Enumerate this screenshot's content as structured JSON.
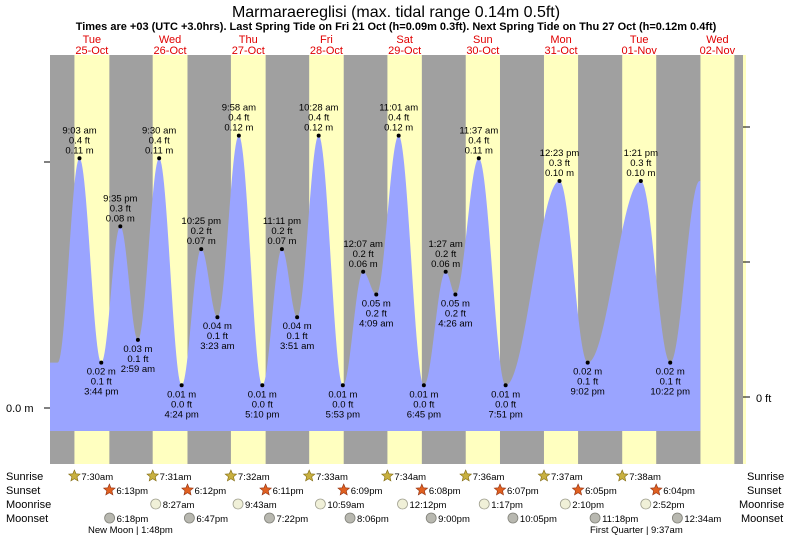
{
  "chart_data": {
    "type": "area",
    "title": "Marmaraereglisi (max. tidal range 0.14m 0.5ft)",
    "subtitle": "Times are +03 (UTC +3.0hrs). Last Spring Tide on Fri 21 Oct (h=0.09m 0.3ft). Next Spring Tide on Thu 27 Oct (h=0.12m 0.4ft)",
    "ylabel_left": "0.0 m",
    "ylabel_right": "0 ft",
    "ylim_m": [
      -0.03,
      0.155
    ],
    "days": [
      {
        "dow": "Tue",
        "date": "25-Oct"
      },
      {
        "dow": "Wed",
        "date": "26-Oct"
      },
      {
        "dow": "Thu",
        "date": "27-Oct"
      },
      {
        "dow": "Fri",
        "date": "28-Oct"
      },
      {
        "dow": "Sat",
        "date": "29-Oct"
      },
      {
        "dow": "Sun",
        "date": "30-Oct"
      },
      {
        "dow": "Mon",
        "date": "31-Oct"
      },
      {
        "dow": "Tue",
        "date": "01-Nov"
      },
      {
        "dow": "Wed",
        "date": "02-Nov"
      }
    ],
    "daylight_hours": [
      {
        "sunrise": 7.5,
        "sunset": 18.217
      },
      {
        "sunrise": 7.517,
        "sunset": 18.2
      },
      {
        "sunrise": 7.533,
        "sunset": 18.183
      },
      {
        "sunrise": 7.55,
        "sunset": 18.15
      },
      {
        "sunrise": 7.567,
        "sunset": 18.133
      },
      {
        "sunrise": 7.6,
        "sunset": 18.117
      },
      {
        "sunrise": 7.617,
        "sunset": 18.083
      },
      {
        "sunrise": 7.633,
        "sunset": 18.067
      },
      {
        "sunrise": 7.65,
        "sunset": 18.05
      }
    ],
    "extremes": [
      {
        "t": 9.05,
        "h": 0.11,
        "type": "high",
        "time": "9:03 am",
        "ft": "0.4 ft",
        "m": "0.11 m"
      },
      {
        "t": 15.733,
        "h": 0.02,
        "type": "low",
        "time": "3:44 pm",
        "ft": "0.1 ft",
        "m": "0.02 m"
      },
      {
        "t": 21.583,
        "h": 0.08,
        "type": "high",
        "time": "9:35 pm",
        "ft": "0.3 ft",
        "m": "0.08 m"
      },
      {
        "t": 26.983,
        "h": 0.03,
        "type": "low",
        "time": "2:59 am",
        "ft": "0.1 ft",
        "m": "0.03 m"
      },
      {
        "t": 33.5,
        "h": 0.11,
        "type": "high",
        "time": "9:30 am",
        "ft": "0.4 ft",
        "m": "0.11 m"
      },
      {
        "t": 40.4,
        "h": 0.01,
        "type": "low",
        "time": "4:24 pm",
        "ft": "0.0 ft",
        "m": "0.01 m"
      },
      {
        "t": 46.417,
        "h": 0.07,
        "type": "high",
        "time": "10:25 pm",
        "ft": "0.2 ft",
        "m": "0.07 m"
      },
      {
        "t": 51.383,
        "h": 0.04,
        "type": "low",
        "time": "3:23 am",
        "ft": "0.1 ft",
        "m": "0.04 m"
      },
      {
        "t": 57.967,
        "h": 0.12,
        "type": "high",
        "time": "9:58 am",
        "ft": "0.4 ft",
        "m": "0.12 m"
      },
      {
        "t": 65.167,
        "h": 0.01,
        "type": "low",
        "time": "5:10 pm",
        "ft": "0.0 ft",
        "m": "0.01 m"
      },
      {
        "t": 71.183,
        "h": 0.07,
        "type": "high",
        "time": "11:11 pm",
        "ft": "0.2 ft",
        "m": "0.07 m"
      },
      {
        "t": 75.85,
        "h": 0.04,
        "type": "low",
        "time": "3:51 am",
        "ft": "0.1 ft",
        "m": "0.04 m"
      },
      {
        "t": 82.467,
        "h": 0.12,
        "type": "high",
        "time": "10:28 am",
        "ft": "0.4 ft",
        "m": "0.12 m"
      },
      {
        "t": 89.883,
        "h": 0.01,
        "type": "low",
        "time": "5:53 pm",
        "ft": "0.0 ft",
        "m": "0.01 m"
      },
      {
        "t": 96.117,
        "h": 0.06,
        "type": "high",
        "time": "12:07 am",
        "ft": "0.2 ft",
        "m": "0.06 m"
      },
      {
        "t": 100.15,
        "h": 0.05,
        "type": "low",
        "time": "4:09 am",
        "ft": "0.2 ft",
        "m": "0.05 m"
      },
      {
        "t": 107.017,
        "h": 0.12,
        "type": "high",
        "time": "11:01 am",
        "ft": "0.4 ft",
        "m": "0.12 m"
      },
      {
        "t": 114.75,
        "h": 0.01,
        "type": "low",
        "time": "6:45 pm",
        "ft": "0.0 ft",
        "m": "0.01 m"
      },
      {
        "t": 121.45,
        "h": 0.06,
        "type": "high",
        "time": "1:27 am",
        "ft": "0.2 ft",
        "m": "0.06 m"
      },
      {
        "t": 124.433,
        "h": 0.05,
        "type": "low",
        "time": "4:26 am",
        "ft": "0.2 ft",
        "m": "0.05 m"
      },
      {
        "t": 131.617,
        "h": 0.11,
        "type": "high",
        "time": "11:37 am",
        "ft": "0.4 ft",
        "m": "0.11 m"
      },
      {
        "t": 139.85,
        "h": 0.01,
        "type": "low",
        "time": "7:51 pm",
        "ft": "0.0 ft",
        "m": "0.01 m"
      },
      {
        "t": 156.383,
        "h": 0.1,
        "type": "high",
        "time": "12:23 pm",
        "ft": "0.3 ft",
        "m": "0.10 m"
      },
      {
        "t": 165.033,
        "h": 0.02,
        "type": "low",
        "time": "9:02 pm",
        "ft": "0.1 ft",
        "m": "0.02 m"
      },
      {
        "t": 181.35,
        "h": 0.1,
        "type": "high",
        "time": "1:21 pm",
        "ft": "0.3 ft",
        "m": "0.10 m"
      },
      {
        "t": 190.367,
        "h": 0.02,
        "type": "low",
        "time": "10:22 pm",
        "ft": "0.1 ft",
        "m": "0.02 m"
      }
    ],
    "rows": {
      "sunrise": {
        "label": "Sunrise",
        "times": [
          "7:30am",
          "7:31am",
          "7:32am",
          "7:33am",
          "7:34am",
          "7:36am",
          "7:37am",
          "7:38am"
        ]
      },
      "sunset": {
        "label": "Sunset",
        "times": [
          "6:13pm",
          "6:12pm",
          "6:11pm",
          "6:09pm",
          "6:08pm",
          "6:07pm",
          "6:05pm",
          "6:04pm"
        ]
      },
      "moonrise": {
        "label": "Moonrise",
        "times": [
          "8:27am",
          "9:43am",
          "10:59am",
          "12:12pm",
          "1:17pm",
          "2:10pm",
          "2:52pm"
        ]
      },
      "moonset": {
        "label": "Moonset",
        "times": [
          "6:18pm",
          "6:47pm",
          "7:22pm",
          "8:06pm",
          "9:00pm",
          "10:05pm",
          "11:18pm",
          "12:34am"
        ]
      }
    },
    "moon_phases": [
      {
        "text": "New Moon | 1:48pm"
      },
      {
        "text": "First Quarter | 9:37am"
      }
    ]
  }
}
